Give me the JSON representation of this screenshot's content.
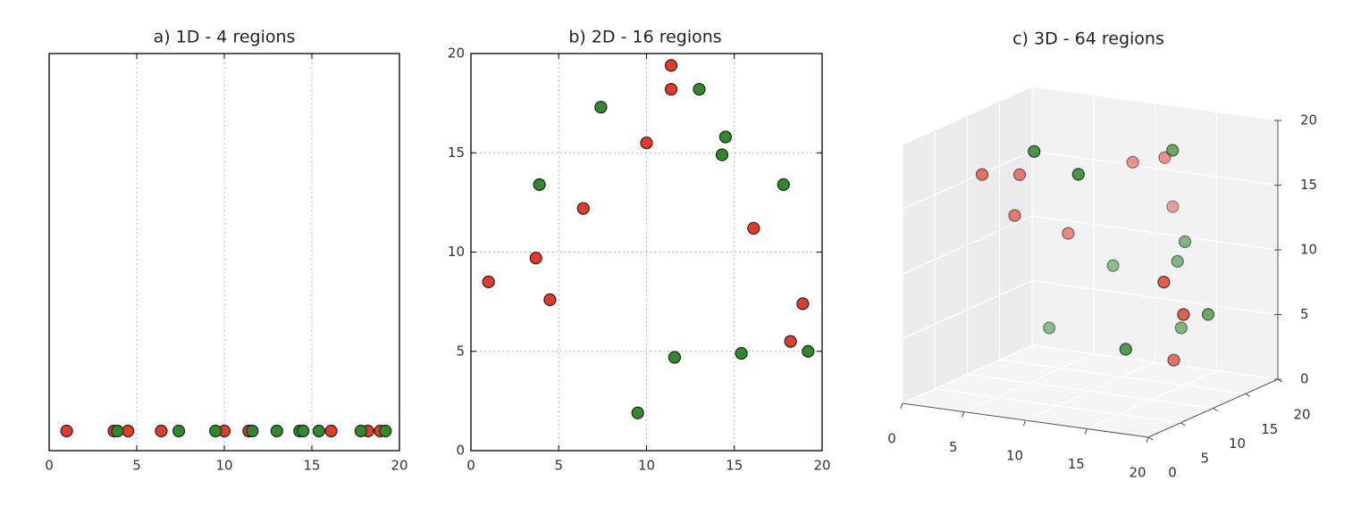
{
  "chart_data": [
    {
      "type": "strip",
      "title": "a) 1D - 4 regions",
      "series": [
        {
          "color": "#e53a28",
          "values": [
            1.0,
            3.7,
            4.5,
            6.4,
            10.0,
            11.4,
            11.4,
            16.1,
            18.2,
            18.9
          ]
        },
        {
          "color": "#2f8a2a",
          "values": [
            3.9,
            7.4,
            9.5,
            11.6,
            13.0,
            14.3,
            14.5,
            15.4,
            17.8,
            19.2
          ]
        }
      ],
      "xlim": [
        0,
        20
      ],
      "xticks": [
        0,
        5,
        10,
        15,
        20
      ],
      "grid": true
    },
    {
      "type": "scatter",
      "title": "b) 2D - 16 regions",
      "series": [
        {
          "color": "#e53a28",
          "x": [
            1.0,
            3.7,
            4.5,
            6.4,
            10.0,
            11.4,
            11.4,
            16.1,
            18.2,
            18.9
          ],
          "values": [
            8.5,
            9.7,
            7.6,
            12.2,
            15.5,
            19.4,
            18.2,
            11.2,
            5.5,
            7.4
          ]
        },
        {
          "color": "#2f8a2a",
          "x": [
            3.9,
            7.4,
            9.5,
            11.6,
            13.0,
            14.3,
            14.5,
            15.4,
            17.8,
            19.2
          ],
          "values": [
            13.4,
            17.3,
            1.9,
            4.7,
            18.2,
            14.9,
            15.8,
            4.9,
            13.4,
            5.0
          ]
        }
      ],
      "xlim": [
        0,
        20
      ],
      "ylim": [
        0,
        20
      ],
      "xticks": [
        0,
        5,
        10,
        15,
        20
      ],
      "yticks": [
        0,
        5,
        10,
        15,
        20
      ],
      "grid": true
    },
    {
      "type": "scatter3d",
      "title": "c) 3D - 64 regions",
      "series": [
        {
          "color": "#e53a28",
          "x": [
            1.2,
            3.2,
            2.8,
            6.1,
            10.3,
            12.9,
            12.5,
            18.1,
            19.7,
            16.8
          ],
          "y": [
            10,
            12,
            12,
            14,
            16,
            16,
            18,
            6,
            6,
            10
          ],
          "z": [
            15.6,
            15.4,
            12.2,
            10.8,
            16.4,
            17.1,
            12.8,
            10.4,
            8.1,
            3.3
          ]
        },
        {
          "color": "#2f8a2a",
          "x": [
            8.6,
            12.2,
            16.7,
            15.6,
            15.0,
            8.7,
            3.5,
            15.0,
            19.6,
            15.3
          ],
          "y": [
            4,
            4,
            10,
            14,
            14,
            16,
            16,
            6,
            10,
            14
          ],
          "z": [
            19.7,
            18.4,
            19.5,
            11.4,
            9.8,
            8.2,
            2.7,
            4.8,
            7.2,
            4.7
          ]
        }
      ],
      "xlim": [
        0,
        20
      ],
      "ylim": [
        0,
        20
      ],
      "zlim": [
        0,
        20
      ],
      "xticks": [
        0,
        5,
        10,
        15,
        20
      ],
      "yticks": [
        0,
        5,
        10,
        15,
        20
      ],
      "zticks": [
        0,
        5,
        10,
        15,
        20
      ],
      "grid": true
    }
  ]
}
